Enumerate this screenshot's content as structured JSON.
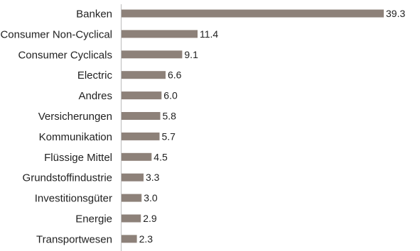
{
  "chart_data": {
    "type": "bar",
    "orientation": "horizontal",
    "categories": [
      "Banken",
      "Consumer Non-Cyclical",
      "Consumer Cyclicals",
      "Electric",
      "Andres",
      "Versicherungen",
      "Kommunikation",
      "Flüssige Mittel",
      "Grundstoffindustrie",
      "Investitionsgüter",
      "Energie",
      "Transportwesen"
    ],
    "values": [
      39.3,
      11.4,
      9.1,
      6.6,
      6.0,
      5.8,
      5.7,
      4.5,
      3.3,
      3.0,
      2.9,
      2.3
    ],
    "value_labels": [
      "39.3",
      "11.4",
      "9.1",
      "6.6",
      "6.0",
      "5.8",
      "5.7",
      "4.5",
      "3.3",
      "3.0",
      "2.9",
      "2.3"
    ],
    "title": "",
    "xlabel": "",
    "ylabel": "",
    "xlim": [
      0,
      39.3
    ],
    "grid": false,
    "legend": "none",
    "bar_color": "#8d8179",
    "axis_color": "#bdbdbd"
  }
}
